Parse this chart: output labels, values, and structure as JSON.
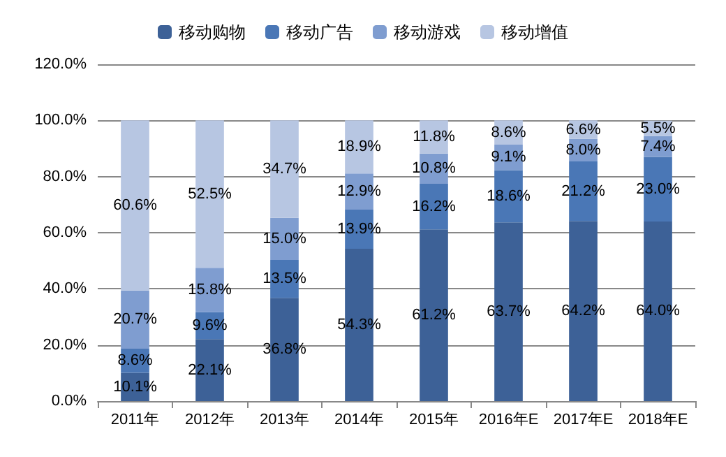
{
  "chart_data": {
    "type": "bar",
    "stacked": true,
    "categories": [
      "2011年",
      "2012年",
      "2013年",
      "2014年",
      "2015年",
      "2016年E",
      "2017年E",
      "2018年E"
    ],
    "series": [
      {
        "name": "移动购物",
        "color": "#3d6197",
        "values": [
          10.1,
          22.1,
          36.8,
          54.3,
          61.2,
          63.7,
          64.2,
          64.0
        ],
        "value_labels": [
          "10.1%",
          "22.1%",
          "36.8%",
          "54.3%",
          "61.2%",
          "63.7%",
          "64.2%",
          "64.0%"
        ]
      },
      {
        "name": "移动广告",
        "color": "#4a77b6",
        "values": [
          8.6,
          9.6,
          13.5,
          13.9,
          16.2,
          18.6,
          21.2,
          23.0
        ],
        "value_labels": [
          "8.6%",
          "9.6%",
          "13.5%",
          "13.9%",
          "16.2%",
          "18.6%",
          "21.2%",
          "23.0%"
        ]
      },
      {
        "name": "移动游戏",
        "color": "#7f9dd0",
        "values": [
          20.7,
          15.8,
          15.0,
          12.9,
          10.8,
          9.1,
          8.0,
          7.4
        ],
        "value_labels": [
          "20.7%",
          "15.8%",
          "15.0%",
          "12.9%",
          "10.8%",
          "9.1%",
          "8.0%",
          "7.4%"
        ]
      },
      {
        "name": "移动增值",
        "color": "#b7c6e2",
        "values": [
          60.6,
          52.5,
          34.7,
          18.9,
          11.8,
          8.6,
          6.6,
          5.5
        ],
        "value_labels": [
          "60.6%",
          "52.5%",
          "34.7%",
          "18.9%",
          "11.8%",
          "8.6%",
          "6.6%",
          "5.5%"
        ]
      }
    ],
    "ylim": [
      0,
      120
    ],
    "yticks": [
      {
        "value": 0,
        "label": "0.0%"
      },
      {
        "value": 20,
        "label": "20.0%"
      },
      {
        "value": 40,
        "label": "40.0%"
      },
      {
        "value": 60,
        "label": "60.0%"
      },
      {
        "value": 80,
        "label": "80.0%"
      },
      {
        "value": 100,
        "label": "100.0%"
      },
      {
        "value": 120,
        "label": "120.0%"
      }
    ],
    "grid": "y",
    "legend": "top"
  }
}
